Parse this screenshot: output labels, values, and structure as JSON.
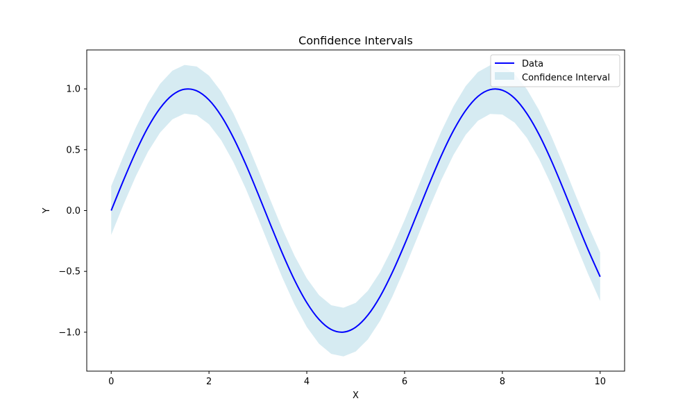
{
  "colors": {
    "line": "#0000ff",
    "band": "#add8e6",
    "axes": "#000000",
    "background": "#ffffff"
  },
  "chart_data": {
    "type": "line",
    "title": "Confidence Intervals",
    "xlabel": "X",
    "ylabel": "Y",
    "xlim": [
      -0.5,
      10.5
    ],
    "ylim": [
      -1.32,
      1.32
    ],
    "xticks": [
      0,
      2,
      4,
      6,
      8,
      10
    ],
    "xtick_labels": [
      "0",
      "2",
      "4",
      "6",
      "8",
      "10"
    ],
    "yticks": [
      -1.0,
      -0.5,
      0.0,
      0.5,
      1.0
    ],
    "ytick_labels": [
      "−1.0",
      "−0.5",
      "0.0",
      "0.5",
      "1.0"
    ],
    "grid": false,
    "legend_position": "top-right",
    "series": [
      {
        "name": "Data",
        "kind": "line",
        "x": [
          0,
          0.25,
          0.5,
          0.75,
          1.0,
          1.25,
          1.5,
          1.75,
          2.0,
          2.25,
          2.5,
          2.75,
          3.0,
          3.25,
          3.5,
          3.75,
          4.0,
          4.25,
          4.5,
          4.75,
          5.0,
          5.25,
          5.5,
          5.75,
          6.0,
          6.25,
          6.5,
          6.75,
          7.0,
          7.25,
          7.5,
          7.75,
          8.0,
          8.25,
          8.5,
          8.75,
          9.0,
          9.25,
          9.5,
          9.75,
          10.0
        ],
        "y": [
          0.0,
          0.247,
          0.479,
          0.682,
          0.841,
          0.949,
          0.997,
          0.984,
          0.909,
          0.778,
          0.598,
          0.382,
          0.141,
          -0.108,
          -0.351,
          -0.572,
          -0.757,
          -0.895,
          -0.978,
          -0.999,
          -0.959,
          -0.859,
          -0.706,
          -0.508,
          -0.279,
          -0.033,
          0.215,
          0.45,
          0.657,
          0.823,
          0.938,
          0.994,
          0.989,
          0.923,
          0.798,
          0.625,
          0.412,
          0.174,
          -0.075,
          -0.319,
          -0.544
        ]
      },
      {
        "name": "Confidence Interval",
        "kind": "band",
        "x": [
          0,
          0.25,
          0.5,
          0.75,
          1.0,
          1.25,
          1.5,
          1.75,
          2.0,
          2.25,
          2.5,
          2.75,
          3.0,
          3.25,
          3.5,
          3.75,
          4.0,
          4.25,
          4.5,
          4.75,
          5.0,
          5.25,
          5.5,
          5.75,
          6.0,
          6.25,
          6.5,
          6.75,
          7.0,
          7.25,
          7.5,
          7.75,
          8.0,
          8.25,
          8.5,
          8.75,
          9.0,
          9.25,
          9.5,
          9.75,
          10.0
        ],
        "lower": [
          -0.2,
          0.047,
          0.279,
          0.482,
          0.641,
          0.749,
          0.797,
          0.784,
          0.709,
          0.578,
          0.398,
          0.182,
          -0.059,
          -0.308,
          -0.551,
          -0.772,
          -0.957,
          -1.095,
          -1.178,
          -1.199,
          -1.159,
          -1.059,
          -0.906,
          -0.708,
          -0.479,
          -0.233,
          0.015,
          0.25,
          0.457,
          0.623,
          0.738,
          0.794,
          0.789,
          0.723,
          0.598,
          0.425,
          0.212,
          -0.026,
          -0.275,
          -0.519,
          -0.744
        ],
        "upper": [
          0.2,
          0.447,
          0.679,
          0.882,
          1.041,
          1.149,
          1.197,
          1.184,
          1.109,
          0.978,
          0.798,
          0.582,
          0.341,
          0.092,
          -0.151,
          -0.372,
          -0.557,
          -0.695,
          -0.778,
          -0.799,
          -0.759,
          -0.659,
          -0.506,
          -0.308,
          -0.079,
          0.167,
          0.415,
          0.65,
          0.857,
          1.023,
          1.138,
          1.194,
          1.189,
          1.123,
          0.998,
          0.825,
          0.612,
          0.374,
          0.125,
          -0.119,
          -0.344
        ]
      }
    ]
  }
}
